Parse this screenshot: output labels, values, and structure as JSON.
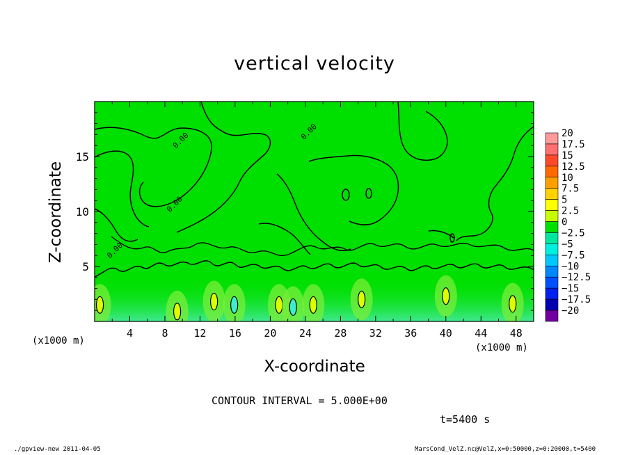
{
  "chart_data": {
    "type": "heatmap",
    "title": "vertical velocity",
    "xlabel": "X-coordinate",
    "ylabel": "Z-coordinate",
    "x_unit_label": "(x1000 m)",
    "xlim": [
      0,
      50
    ],
    "ylim": [
      0,
      20
    ],
    "x_ticks": [
      4,
      8,
      12,
      16,
      20,
      24,
      28,
      32,
      36,
      40,
      44,
      48
    ],
    "y_ticks": [
      5,
      10,
      15
    ],
    "colorbar": {
      "levels": [
        20,
        17.5,
        15,
        12.5,
        10,
        7.5,
        5,
        2.5,
        0,
        -2.5,
        -5,
        -7.5,
        -10,
        -12.5,
        -15,
        -17.5,
        -20
      ],
      "labels": [
        "20",
        "17.5",
        "15",
        "12.5",
        "10",
        "7.5",
        "5",
        "2.5",
        "0",
        "−2.5",
        "−5",
        "−7.5",
        "−10",
        "−12.5",
        "−15",
        "−17.5",
        "−20"
      ],
      "colors": [
        "#ff9a9a",
        "#ff7070",
        "#ff4a2a",
        "#ff6a00",
        "#ffa000",
        "#ffd200",
        "#ffff00",
        "#c8ff00",
        "#00e000",
        "#00e8a0",
        "#00f0e0",
        "#00c8ff",
        "#0088ff",
        "#0050ff",
        "#0020f0",
        "#0000b0",
        "#7000a0"
      ]
    },
    "annotations": {
      "contour_interval": "CONTOUR INTERVAL = 5.000E+00",
      "time": "t=5400 s"
    },
    "upper_contour_labels": [
      {
        "x": 10.0,
        "y": 16.3,
        "text": "0.00"
      },
      {
        "x": 9.3,
        "y": 10.5,
        "text": "0.00"
      },
      {
        "x": 24.6,
        "y": 17.1,
        "text": "0.00"
      },
      {
        "x": 2.5,
        "y": 6.3,
        "text": "0.00"
      }
    ],
    "updraft_cores": [
      {
        "x": 0.6,
        "z": 1.5,
        "w": 5
      },
      {
        "x": 9.4,
        "z": 0.9,
        "w": 5
      },
      {
        "x": 13.6,
        "z": 1.8,
        "w": 5
      },
      {
        "x": 15.9,
        "z": 1.5,
        "w": -5
      },
      {
        "x": 21.0,
        "z": 1.5,
        "w": 5
      },
      {
        "x": 22.6,
        "z": 1.3,
        "w": -5
      },
      {
        "x": 24.9,
        "z": 1.5,
        "w": 5
      },
      {
        "x": 30.4,
        "z": 2.0,
        "w": 5
      },
      {
        "x": 40.0,
        "z": 2.3,
        "w": 5
      },
      {
        "x": 47.6,
        "z": 1.6,
        "w": 5
      }
    ]
  },
  "footer": {
    "left": "./gpview-new   2011-04-05",
    "right": "MarsCond_VelZ.nc@VelZ,x=0:50000,z=0:20000,t=5400"
  }
}
